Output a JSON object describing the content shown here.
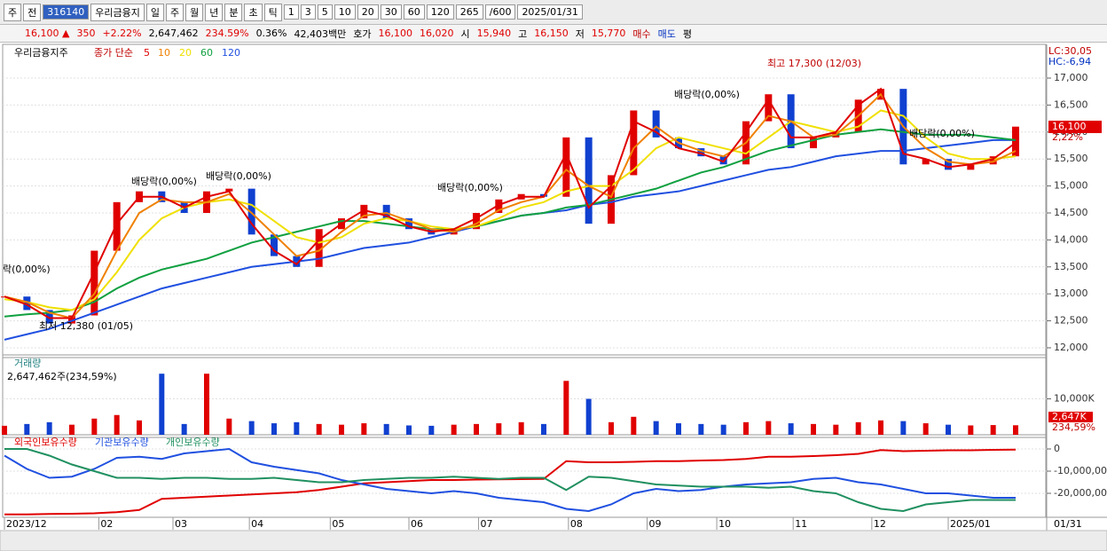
{
  "toolbar": {
    "items": [
      "주",
      "전",
      "316140",
      "우리금융지",
      "일",
      "주",
      "월",
      "년",
      "분",
      "초",
      "틱",
      "1",
      "3",
      "5",
      "10",
      "20",
      "30",
      "60",
      "120",
      "265",
      "/600",
      "2025/01/31"
    ]
  },
  "info_bar": {
    "items": [
      {
        "text": "16,100 ▲",
        "color": "#e00000"
      },
      {
        "text": "350",
        "color": "#e00000"
      },
      {
        "text": "+2.22%",
        "color": "#e00000"
      },
      {
        "text": "2,647,462",
        "color": "#000"
      },
      {
        "text": "234.59%",
        "color": "#e00000"
      },
      {
        "text": "0.36%",
        "color": "#000"
      },
      {
        "text": "42,403백만",
        "color": "#000"
      },
      {
        "text": "호가",
        "color": "#000"
      },
      {
        "text": "16,100",
        "color": "#e00000"
      },
      {
        "text": "16,020",
        "color": "#e00000"
      },
      {
        "text": "시",
        "color": "#000"
      },
      {
        "text": "15,940",
        "color": "#e00000"
      },
      {
        "text": "고",
        "color": "#000"
      },
      {
        "text": "16,150",
        "color": "#e00000"
      },
      {
        "text": "저",
        "color": "#000"
      },
      {
        "text": "15,770",
        "color": "#e00000"
      },
      {
        "text": "매수",
        "color": "#c00000"
      },
      {
        "text": "매도",
        "color": "#0030c0"
      },
      {
        "text": "평",
        "color": "#000"
      }
    ]
  },
  "chart_data": [
    {
      "type": "candlestick",
      "name": "우리금융지주",
      "title": "종가 단순",
      "up_color": "#e00000",
      "down_color": "#1040d0",
      "values": [
        12950,
        12700,
        12450,
        12600,
        13800,
        14700,
        14900,
        14700,
        14500,
        14900,
        14950,
        14100,
        13700,
        13500,
        14200,
        14400,
        14650,
        14400,
        14200,
        14100,
        14200,
        14500,
        14750,
        14850,
        14800,
        15900,
        14300,
        15200,
        16400,
        15900,
        15700,
        15550,
        15400,
        16200,
        16700,
        15700,
        15900,
        16000,
        16600,
        16800,
        15400,
        15500,
        15300,
        15400,
        15550,
        16100
      ],
      "series": [
        {
          "name": "5",
          "color": "#e00000",
          "values": [
            12950,
            12800,
            12550,
            12550,
            13400,
            14300,
            14800,
            14800,
            14600,
            14800,
            14900,
            14300,
            13800,
            13550,
            14000,
            14300,
            14550,
            14450,
            14250,
            14150,
            14200,
            14400,
            14650,
            14800,
            14800,
            15600,
            14600,
            15000,
            16200,
            16000,
            15700,
            15600,
            15450,
            16000,
            16600,
            15900,
            15900,
            16000,
            16500,
            16800,
            15600,
            15500,
            15350,
            15400,
            15500,
            15800
          ]
        },
        {
          "name": "10",
          "color": "#f08000",
          "values": [
            12950,
            12850,
            12650,
            12550,
            13000,
            13800,
            14500,
            14750,
            14700,
            14700,
            14850,
            14500,
            14100,
            13700,
            13800,
            14150,
            14450,
            14500,
            14350,
            14200,
            14150,
            14300,
            14550,
            14700,
            14800,
            15300,
            15000,
            14800,
            15700,
            16100,
            15800,
            15650,
            15550,
            15800,
            16300,
            16200,
            15900,
            15950,
            16300,
            16700,
            16100,
            15700,
            15450,
            15400,
            15450,
            15650
          ]
        },
        {
          "name": "20",
          "color": "#f0e000",
          "values": [
            12900,
            12850,
            12750,
            12700,
            12900,
            13400,
            14000,
            14400,
            14600,
            14700,
            14750,
            14650,
            14350,
            14050,
            13950,
            14050,
            14300,
            14400,
            14350,
            14250,
            14200,
            14250,
            14400,
            14600,
            14700,
            14900,
            15000,
            15000,
            15300,
            15700,
            15900,
            15800,
            15700,
            15600,
            15900,
            16200,
            16100,
            16000,
            16100,
            16400,
            16300,
            15900,
            15600,
            15500,
            15500,
            15550
          ]
        },
        {
          "name": "60",
          "color": "#10a040",
          "values": [
            12580,
            12620,
            12650,
            12700,
            12850,
            13100,
            13300,
            13450,
            13550,
            13650,
            13800,
            13950,
            14050,
            14150,
            14250,
            14350,
            14350,
            14300,
            14250,
            14200,
            14200,
            14250,
            14350,
            14450,
            14500,
            14600,
            14650,
            14750,
            14850,
            14950,
            15100,
            15250,
            15350,
            15500,
            15650,
            15750,
            15850,
            15950,
            16000,
            16050,
            16000,
            15950,
            15950,
            15950,
            15900,
            15850
          ]
        },
        {
          "name": "120",
          "color": "#2050e0",
          "values": [
            12150,
            12250,
            12350,
            12500,
            12650,
            12800,
            12950,
            13100,
            13200,
            13300,
            13400,
            13500,
            13550,
            13600,
            13650,
            13750,
            13850,
            13900,
            13950,
            14050,
            14150,
            14250,
            14350,
            14450,
            14500,
            14550,
            14650,
            14700,
            14800,
            14850,
            14900,
            15000,
            15100,
            15200,
            15300,
            15350,
            15450,
            15550,
            15600,
            15650,
            15650,
            15700,
            15750,
            15800,
            15850,
            15850
          ]
        }
      ],
      "ylim": [
        11868,
        17543
      ],
      "yticks": [
        {
          "value": 12000,
          "label": "12,000"
        },
        {
          "value": 12500,
          "label": "12,500"
        },
        {
          "value": 13000,
          "label": "13,000"
        },
        {
          "value": 13500,
          "label": "13,500"
        },
        {
          "value": 14000,
          "label": "14,000"
        },
        {
          "value": 14500,
          "label": "14,500"
        },
        {
          "value": 15000,
          "label": "15,000"
        },
        {
          "value": 15500,
          "label": "15,500"
        },
        {
          "value": 16000,
          "label": "16,000"
        },
        {
          "value": 16500,
          "label": "16,500"
        },
        {
          "value": 17000,
          "label": "17,000"
        }
      ],
      "annotations": [
        "락(0,00%)",
        "배당락(0,00%)",
        "배당락(0,00%)",
        "배당락(0,00%)",
        "배당락(0,00%)",
        "배당락(0,00%)",
        "최고 17,300 (12/03)",
        "최저 12,380 (01/05)"
      ],
      "side_labels": [
        "LC:30,05",
        "HC:-6,94",
        "16,100",
        "2,22%"
      ]
    },
    {
      "type": "bar",
      "title": "거래량",
      "subtitle": "2,647,462주(234,59%)",
      "values": [
        2500,
        3000,
        3500,
        2800,
        4500,
        5500,
        4000,
        17000,
        3000,
        17000,
        4500,
        3800,
        3200,
        3500,
        3000,
        2800,
        3200,
        3000,
        2600,
        2500,
        2800,
        3000,
        3200,
        3500,
        3000,
        15000,
        10000,
        3500,
        5000,
        3800,
        3200,
        3000,
        2800,
        3500,
        3800,
        3200,
        3000,
        2800,
        3500,
        4000,
        3800,
        3200,
        2800,
        2600,
        2700,
        2647
      ],
      "ylim": [
        0,
        21000
      ],
      "yticks": [
        {
          "value": 10000,
          "label": "10,000K"
        }
      ],
      "side_labels": [
        "2,647K",
        "234,59%"
      ]
    },
    {
      "type": "line",
      "series": [
        {
          "name": "외국인보유수량",
          "color": "#e00000",
          "values": [
            -2950000,
            -2950000,
            -2930000,
            -2920000,
            -2900000,
            -2850000,
            -2750000,
            -2250000,
            -2200000,
            -2150000,
            -2100000,
            -2050000,
            -2000000,
            -1950000,
            -1850000,
            -1700000,
            -1550000,
            -1500000,
            -1450000,
            -1400000,
            -1400000,
            -1380000,
            -1370000,
            -1360000,
            -1350000,
            -550000,
            -600000,
            -600000,
            -580000,
            -550000,
            -550000,
            -520000,
            -500000,
            -450000,
            -350000,
            -350000,
            -320000,
            -280000,
            -220000,
            -50000,
            -100000,
            -80000,
            -60000,
            -60000,
            -40000,
            -30000
          ]
        },
        {
          "name": "기관보유수량",
          "color": "#2050e0",
          "values": [
            -300000,
            -900000,
            -1300000,
            -1250000,
            -900000,
            -400000,
            -350000,
            -450000,
            -200000,
            -100000,
            0,
            -600000,
            -800000,
            -950000,
            -1100000,
            -1400000,
            -1600000,
            -1800000,
            -1900000,
            -2000000,
            -1900000,
            -2000000,
            -2200000,
            -2300000,
            -2400000,
            -2700000,
            -2800000,
            -2500000,
            -2000000,
            -1800000,
            -1900000,
            -1850000,
            -1700000,
            -1600000,
            -1550000,
            -1500000,
            -1350000,
            -1300000,
            -1500000,
            -1600000,
            -1800000,
            -2000000,
            -2000000,
            -2100000,
            -2200000,
            -2200000
          ]
        },
        {
          "name": "개인보유수량",
          "color": "#209060",
          "values": [
            0,
            0,
            -300000,
            -700000,
            -1000000,
            -1300000,
            -1300000,
            -1350000,
            -1300000,
            -1300000,
            -1350000,
            -1350000,
            -1300000,
            -1400000,
            -1500000,
            -1500000,
            -1400000,
            -1350000,
            -1300000,
            -1300000,
            -1250000,
            -1300000,
            -1350000,
            -1300000,
            -1300000,
            -1850000,
            -1250000,
            -1300000,
            -1450000,
            -1600000,
            -1650000,
            -1700000,
            -1700000,
            -1700000,
            -1750000,
            -1700000,
            -1900000,
            -2000000,
            -2400000,
            -2700000,
            -2800000,
            -2500000,
            -2400000,
            -2300000,
            -2300000,
            -2300000
          ]
        }
      ],
      "ylim": [
        -2960000,
        440000
      ],
      "yticks": [
        0,
        {
          "value": -1000000,
          "label": "-10,000,00"
        },
        {
          "value": -2000000,
          "label": "-20,000,00"
        }
      ],
      "xlim": [
        0,
        45
      ],
      "xticks": [
        {
          "value": 0,
          "label": "2023/12"
        },
        {
          "value": 4.2,
          "label": "02"
        },
        {
          "value": 7.5,
          "label": "03"
        },
        {
          "value": 10.9,
          "label": "04"
        },
        {
          "value": 14.5,
          "label": "05"
        },
        {
          "value": 18,
          "label": "06"
        },
        {
          "value": 21.1,
          "label": "07"
        },
        {
          "value": 25.1,
          "label": "08"
        },
        {
          "value": 28.6,
          "label": "09"
        },
        {
          "value": 31.7,
          "label": "10"
        },
        {
          "value": 35.1,
          "label": "11"
        },
        {
          "value": 38.6,
          "label": "12"
        },
        {
          "value": 42,
          "label": "2025/01"
        }
      ],
      "cursor_label": "01/31"
    }
  ]
}
